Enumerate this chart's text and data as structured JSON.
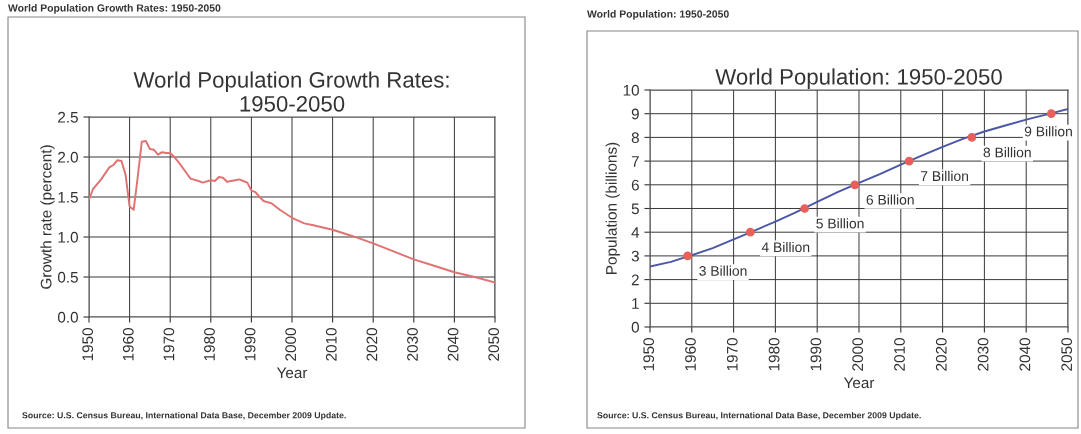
{
  "chart_data": [
    {
      "type": "line",
      "subtitle": "World Population Growth Rates: 1950-2050",
      "title": "World Population Growth Rates:\n1950-2050",
      "xlabel": "Year",
      "ylabel": "Growth rate (percent)",
      "xlim": [
        1950,
        2050
      ],
      "xticks": [
        1950,
        1960,
        1970,
        1980,
        1990,
        2000,
        2010,
        2020,
        2030,
        2040,
        2050
      ],
      "ylim": [
        0,
        2.5
      ],
      "yticks": [
        {
          "value": 0,
          "label": "0.0"
        },
        {
          "value": 0.5,
          "label": "0.5"
        },
        {
          "value": 1,
          "label": "1.0"
        },
        {
          "value": 1.5,
          "label": "1.5"
        },
        {
          "value": 2,
          "label": "2.0"
        },
        {
          "value": 2.5,
          "label": "2.5"
        }
      ],
      "grid": true,
      "series": [
        {
          "color": "#e07272",
          "x": [
            1950,
            1951,
            1953,
            1955,
            1956,
            1957,
            1958,
            1959,
            1960,
            1961,
            1962,
            1963,
            1964,
            1965,
            1966,
            1967,
            1968,
            1969,
            1970,
            1971,
            1972,
            1973,
            1974,
            1975,
            1977,
            1978,
            1980,
            1981,
            1982,
            1983,
            1984,
            1986,
            1987,
            1988,
            1989,
            1990,
            1991,
            1992,
            1993,
            1995,
            1997,
            2000,
            2003,
            2005,
            2010,
            2015,
            2020,
            2025,
            2030,
            2035,
            2040,
            2045,
            2050
          ],
          "values": [
            1.47,
            1.6,
            1.72,
            1.87,
            1.9,
            1.96,
            1.95,
            1.78,
            1.38,
            1.34,
            1.75,
            2.19,
            2.2,
            2.1,
            2.09,
            2.03,
            2.06,
            2.05,
            2.05,
            2.0,
            1.94,
            1.87,
            1.8,
            1.73,
            1.7,
            1.68,
            1.71,
            1.7,
            1.75,
            1.74,
            1.69,
            1.71,
            1.72,
            1.7,
            1.68,
            1.58,
            1.56,
            1.5,
            1.45,
            1.42,
            1.34,
            1.24,
            1.17,
            1.15,
            1.09,
            1.01,
            0.92,
            0.82,
            0.72,
            0.64,
            0.56,
            0.5,
            0.43
          ]
        }
      ],
      "annotations": [
        "Source: U.S. Census Bureau, International Data Base, December 2009 Update."
      ]
    },
    {
      "type": "line",
      "subtitle": "World Population: 1950-2050",
      "title": "World Population: 1950-2050",
      "xlabel": "Year",
      "ylabel": "Population (billions)",
      "xlim": [
        1950,
        2050
      ],
      "xticks": [
        1950,
        1960,
        1970,
        1980,
        1990,
        2000,
        2010,
        2020,
        2030,
        2040,
        2050
      ],
      "ylim": [
        0,
        10
      ],
      "yticks": [
        0,
        1,
        2,
        3,
        4,
        5,
        6,
        7,
        8,
        9,
        10
      ],
      "grid": true,
      "series": [
        {
          "color": "#4b56a6",
          "x": [
            1950,
            1955,
            1960,
            1965,
            1970,
            1975,
            1980,
            1985,
            1990,
            1995,
            2000,
            2005,
            2010,
            2015,
            2020,
            2025,
            2030,
            2035,
            2040,
            2045,
            2050
          ],
          "values": [
            2.55,
            2.75,
            3.03,
            3.33,
            3.7,
            4.07,
            4.45,
            4.85,
            5.28,
            5.7,
            6.08,
            6.45,
            6.85,
            7.23,
            7.6,
            7.95,
            8.25,
            8.5,
            8.75,
            8.97,
            9.2
          ]
        },
        {
          "type": "scatter",
          "color": "#e8605a",
          "marker": "circle",
          "x": [
            1959,
            1974,
            1987,
            1999,
            2012,
            2027,
            2046
          ],
          "values": [
            3,
            4,
            5,
            6,
            7,
            8,
            9
          ],
          "value_labels": [
            "3 Billion",
            "4 Billion",
            "5 Billion",
            "6 Billion",
            "7 Billion",
            "8 Billion",
            "9 Billion"
          ]
        }
      ],
      "annotations": [
        "Source: U.S. Census Bureau, International Data Base, December 2009 Update."
      ]
    }
  ]
}
